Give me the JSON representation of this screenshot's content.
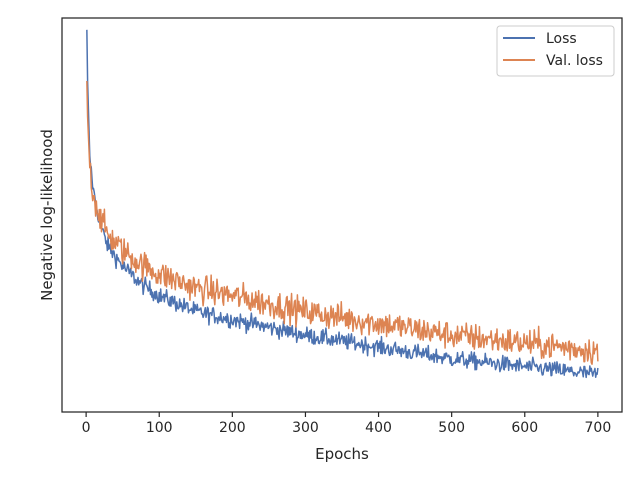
{
  "chart_data": {
    "type": "line",
    "title": "",
    "xlabel": "Epochs",
    "ylabel": "Negative log-likelihood",
    "xlim": [
      -33,
      733
    ],
    "ylim": [
      0,
      1
    ],
    "x_ticks": [
      0,
      100,
      200,
      300,
      400,
      500,
      600,
      700
    ],
    "y_ticks_shown": false,
    "grid": false,
    "legend_position": "top-right",
    "x_start": 1,
    "x_end": 700,
    "series": [
      {
        "name": "Loss",
        "color": "#4c72b0",
        "trend_x": [
          1,
          2,
          5,
          10,
          20,
          30,
          50,
          75,
          100,
          150,
          200,
          250,
          300,
          350,
          400,
          450,
          500,
          550,
          600,
          650,
          700
        ],
        "trend_y": [
          0.97,
          0.84,
          0.65,
          0.56,
          0.47,
          0.42,
          0.37,
          0.325,
          0.295,
          0.255,
          0.235,
          0.215,
          0.195,
          0.18,
          0.165,
          0.15,
          0.135,
          0.125,
          0.115,
          0.105,
          0.095
        ],
        "noise": 0.015
      },
      {
        "name": "Val. loss",
        "color": "#dd8452",
        "trend_x": [
          1,
          2,
          5,
          10,
          20,
          30,
          50,
          75,
          100,
          150,
          200,
          250,
          300,
          350,
          400,
          450,
          500,
          550,
          600,
          650,
          700
        ],
        "trend_y": [
          0.84,
          0.75,
          0.62,
          0.55,
          0.49,
          0.45,
          0.41,
          0.375,
          0.35,
          0.315,
          0.295,
          0.275,
          0.255,
          0.24,
          0.225,
          0.21,
          0.195,
          0.185,
          0.175,
          0.165,
          0.155
        ],
        "noise": 0.025
      }
    ]
  }
}
